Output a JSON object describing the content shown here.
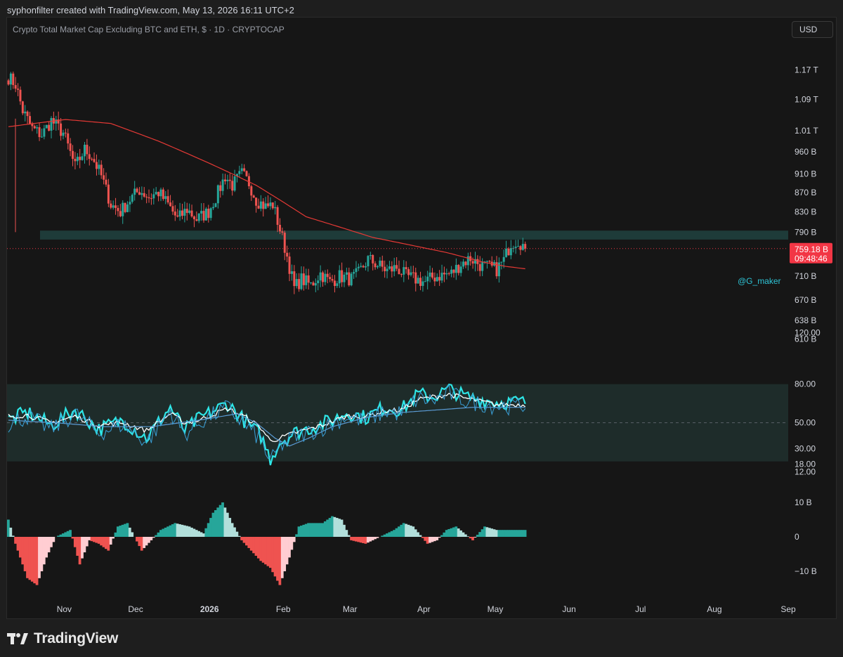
{
  "header": {
    "text": "syphonfilter created with TradingView.com, May 13, 2026 16:11 UTC+2"
  },
  "symbol": {
    "text": "Crypto Total Market Cap Excluding BTC and ETH, $ · 1D · CRYPTOCAP"
  },
  "currency_button": {
    "label": "USD"
  },
  "watermark": {
    "text": "@G_maker"
  },
  "branding": {
    "name": "TradingView"
  },
  "colors": {
    "up": "#26a69a",
    "down": "#ef5350",
    "ma": "#e53935",
    "zone": "#1f3f3d",
    "rsi": "#2ee6e6",
    "rsi_ma": "#ffffff",
    "rsi_slow": "#5b9bd5",
    "hist_up_strong": "#26a69a",
    "hist_up_weak": "#b2dfdb",
    "hist_down_strong": "#ef5350",
    "hist_down_weak": "#ffcdd2",
    "price_tag": "#f23645"
  },
  "chart_data": [
    {
      "type": "candlestick",
      "title": "Crypto Total Market Cap Excluding BTC and ETH",
      "y_scale": "log",
      "ylim": [
        600,
        1210
      ],
      "y_tick_labels": [
        "1.17 T",
        "1.09 T",
        "1.01 T",
        "960 B",
        "910 B",
        "870 B",
        "830 B",
        "790 B",
        "710 B",
        "670 B",
        "638 B",
        "610 B"
      ],
      "y_tick_values": [
        1170,
        1090,
        1010,
        960,
        910,
        870,
        830,
        790,
        710,
        670,
        638,
        610
      ],
      "x_tick_labels": [
        "Nov",
        "Dec",
        "2026",
        "Feb",
        "Mar",
        "Apr",
        "May",
        "Jun",
        "Jul",
        "Aug",
        "Sep"
      ],
      "x_tick_dates": [
        "2025-11-01",
        "2025-12-01",
        "2026-01-01",
        "2026-02-01",
        "2026-03-01",
        "2026-04-01",
        "2026-05-01",
        "2026-06-01",
        "2026-07-01",
        "2026-08-01",
        "2026-09-01"
      ],
      "x_range": [
        "2025-10-08",
        "2026-09-01"
      ],
      "grid": false,
      "last_price": {
        "value": 759.18,
        "label": "759.18 B",
        "countdown": "09:48:46"
      },
      "resistance_zone": {
        "from": 776,
        "to": 793
      },
      "anchors": [
        [
          "2025-10-08",
          1150
        ],
        [
          "2025-10-11",
          1130
        ],
        [
          "2025-10-14",
          1060
        ],
        [
          "2025-10-18",
          1015
        ],
        [
          "2025-10-22",
          1000
        ],
        [
          "2025-10-26",
          1035
        ],
        [
          "2025-10-31",
          1005
        ],
        [
          "2025-11-05",
          925
        ],
        [
          "2025-11-09",
          965
        ],
        [
          "2025-11-12",
          950
        ],
        [
          "2025-11-16",
          905
        ],
        [
          "2025-11-20",
          845
        ],
        [
          "2025-11-24",
          830
        ],
        [
          "2025-11-28",
          855
        ],
        [
          "2025-12-02",
          875
        ],
        [
          "2025-12-06",
          860
        ],
        [
          "2025-12-10",
          870
        ],
        [
          "2025-12-14",
          845
        ],
        [
          "2025-12-18",
          815
        ],
        [
          "2025-12-22",
          835
        ],
        [
          "2025-12-26",
          815
        ],
        [
          "2025-12-31",
          830
        ],
        [
          "2026-01-04",
          870
        ],
        [
          "2026-01-07",
          905
        ],
        [
          "2026-01-10",
          885
        ],
        [
          "2026-01-14",
          910
        ],
        [
          "2026-01-17",
          890
        ],
        [
          "2026-01-20",
          855
        ],
        [
          "2026-01-24",
          840
        ],
        [
          "2026-01-27",
          845
        ],
        [
          "2026-01-30",
          795
        ],
        [
          "2026-02-02",
          745
        ],
        [
          "2026-02-05",
          690
        ],
        [
          "2026-02-08",
          705
        ],
        [
          "2026-02-12",
          695
        ],
        [
          "2026-02-16",
          715
        ],
        [
          "2026-02-20",
          700
        ],
        [
          "2026-02-24",
          710
        ],
        [
          "2026-03-01",
          705
        ],
        [
          "2026-03-04",
          715
        ],
        [
          "2026-03-08",
          740
        ],
        [
          "2026-03-12",
          730
        ],
        [
          "2026-03-16",
          720
        ],
        [
          "2026-03-20",
          725
        ],
        [
          "2026-03-24",
          710
        ],
        [
          "2026-03-28",
          705
        ],
        [
          "2026-04-01",
          700
        ],
        [
          "2026-04-04",
          708
        ],
        [
          "2026-04-08",
          712
        ],
        [
          "2026-04-12",
          715
        ],
        [
          "2026-04-16",
          732
        ],
        [
          "2026-04-20",
          742
        ],
        [
          "2026-04-24",
          730
        ],
        [
          "2026-04-28",
          725
        ],
        [
          "2026-05-01",
          722
        ],
        [
          "2026-05-04",
          738
        ],
        [
          "2026-05-07",
          770
        ],
        [
          "2026-05-10",
          775
        ],
        [
          "2026-05-12",
          765
        ],
        [
          "2026-05-13",
          759
        ]
      ],
      "ma_anchors": [
        [
          "2025-10-08",
          1020
        ],
        [
          "2025-11-01",
          1038
        ],
        [
          "2025-11-20",
          1028
        ],
        [
          "2025-12-10",
          985
        ],
        [
          "2026-01-01",
          932
        ],
        [
          "2026-01-20",
          885
        ],
        [
          "2026-02-10",
          820
        ],
        [
          "2026-03-10",
          780
        ],
        [
          "2026-04-10",
          752
        ],
        [
          "2026-04-25",
          735
        ],
        [
          "2026-05-05",
          727
        ],
        [
          "2026-05-13",
          723
        ]
      ]
    },
    {
      "type": "line",
      "title": "RSI",
      "ylim": [
        10,
        100
      ],
      "y_tick_labels": [
        "120.00",
        "80.00",
        "50.00",
        "30.00",
        "18.00",
        "12.00"
      ],
      "y_tick_values": [
        120,
        80,
        50,
        30,
        18,
        12
      ],
      "band": [
        20,
        80
      ],
      "midline": 50,
      "series": [
        {
          "anchors": [
            [
              0,
              52
            ],
            [
              8,
              58
            ],
            [
              18,
              48
            ],
            [
              28,
              60
            ],
            [
              38,
              45
            ],
            [
              48,
              52
            ],
            [
              58,
              38
            ],
            [
              68,
              62
            ],
            [
              74,
              44
            ],
            [
              80,
              53
            ],
            [
              92,
              65
            ],
            [
              100,
              50
            ],
            [
              106,
              40
            ],
            [
              110,
              22
            ],
            [
              114,
              35
            ],
            [
              120,
              42
            ],
            [
              130,
              48
            ],
            [
              136,
              52
            ],
            [
              142,
              58
            ],
            [
              150,
              54
            ],
            [
              158,
              62
            ],
            [
              165,
              60
            ],
            [
              172,
              72
            ],
            [
              178,
              70
            ],
            [
              185,
              76
            ],
            [
              192,
              70
            ],
            [
              205,
              66
            ]
          ]
        },
        {
          "anchors": [
            [
              0,
              55
            ],
            [
              8,
              56
            ],
            [
              18,
              50
            ],
            [
              28,
              55
            ],
            [
              38,
              48
            ],
            [
              48,
              50
            ],
            [
              58,
              44
            ],
            [
              68,
              57
            ],
            [
              74,
              50
            ],
            [
              80,
              52
            ],
            [
              92,
              61
            ],
            [
              100,
              54
            ],
            [
              106,
              46
            ],
            [
              110,
              36
            ],
            [
              114,
              38
            ],
            [
              120,
              42
            ],
            [
              130,
              47
            ],
            [
              136,
              51
            ],
            [
              142,
              55
            ],
            [
              150,
              55
            ],
            [
              158,
              59
            ],
            [
              165,
              60
            ],
            [
              172,
              68
            ],
            [
              178,
              70
            ],
            [
              185,
              72
            ],
            [
              192,
              69
            ],
            [
              205,
              64
            ]
          ]
        },
        {
          "anchors": [
            [
              0,
              52
            ],
            [
              20,
              50
            ],
            [
              40,
              47
            ],
            [
              60,
              47
            ],
            [
              80,
              52
            ],
            [
              96,
              57
            ],
            [
              104,
              50
            ],
            [
              112,
              38
            ],
            [
              118,
              32
            ],
            [
              126,
              38
            ],
            [
              136,
              47
            ],
            [
              150,
              54
            ],
            [
              165,
              58
            ],
            [
              180,
              60
            ],
            [
              195,
              62
            ],
            [
              205,
              62
            ]
          ]
        }
      ]
    },
    {
      "type": "histogram",
      "title": "Momentum",
      "ylim": [
        -15,
        15
      ],
      "y_tick_labels": [
        "10 B",
        "0",
        "−10 B"
      ],
      "y_tick_values": [
        10,
        0,
        -10
      ],
      "anchors": [
        [
          0,
          5
        ],
        [
          3,
          -2
        ],
        [
          8,
          -12
        ],
        [
          12,
          -14
        ],
        [
          16,
          -6
        ],
        [
          20,
          0
        ],
        [
          26,
          2
        ],
        [
          30,
          -8
        ],
        [
          34,
          -1
        ],
        [
          38,
          -2
        ],
        [
          42,
          -4
        ],
        [
          46,
          3
        ],
        [
          50,
          4
        ],
        [
          56,
          -4
        ],
        [
          60,
          -1
        ],
        [
          64,
          2
        ],
        [
          70,
          4
        ],
        [
          76,
          3
        ],
        [
          82,
          1
        ],
        [
          86,
          7
        ],
        [
          90,
          10
        ],
        [
          94,
          4
        ],
        [
          98,
          -1
        ],
        [
          102,
          -4
        ],
        [
          106,
          -7
        ],
        [
          110,
          -9
        ],
        [
          114,
          -14
        ],
        [
          118,
          -6
        ],
        [
          122,
          3
        ],
        [
          126,
          4
        ],
        [
          132,
          4
        ],
        [
          136,
          6
        ],
        [
          140,
          5
        ],
        [
          144,
          -1
        ],
        [
          150,
          -2
        ],
        [
          156,
          0
        ],
        [
          162,
          2
        ],
        [
          166,
          4
        ],
        [
          170,
          3
        ],
        [
          176,
          -2
        ],
        [
          180,
          -1
        ],
        [
          184,
          2
        ],
        [
          188,
          3
        ],
        [
          195,
          -1
        ],
        [
          200,
          3
        ],
        [
          205,
          2
        ]
      ]
    }
  ]
}
